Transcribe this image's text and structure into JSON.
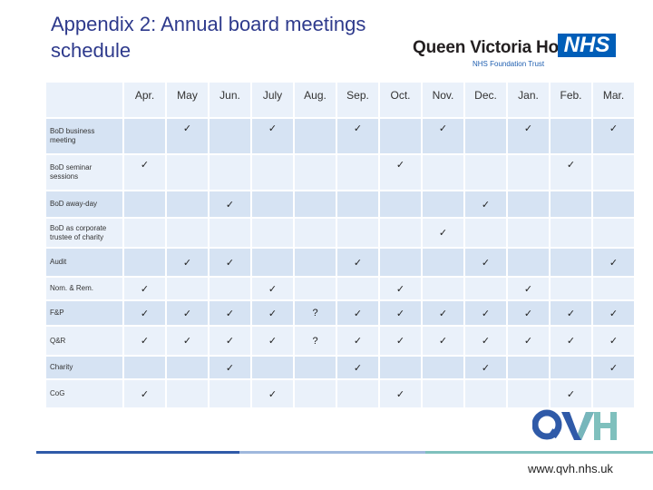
{
  "title": "Appendix 2: Annual board meetings schedule",
  "logo": {
    "hospital_name": "Queen Victoria Hospital",
    "nhs_mark": "NHS",
    "trust_line": "NHS Foundation Trust",
    "qvh_letters": "QVH"
  },
  "table": {
    "months": [
      "Apr.",
      "May",
      "Jun.",
      "July",
      "Aug.",
      "Sep.",
      "Oct.",
      "Nov.",
      "Dec.",
      "Jan.",
      "Feb.",
      "Mar."
    ],
    "rows": [
      {
        "label_lines": [
          "BoD business",
          "meeting"
        ],
        "cells": [
          "",
          "✓",
          "",
          "✓",
          "",
          "✓",
          "",
          "✓",
          "",
          "✓",
          "",
          "✓"
        ]
      },
      {
        "label_lines": [
          "BoD seminar",
          "sessions"
        ],
        "cells": [
          "✓",
          "",
          "",
          "",
          "",
          "",
          "✓",
          "",
          "",
          "",
          "✓",
          ""
        ]
      },
      {
        "label_lines": [
          "BoD away-day"
        ],
        "cells": [
          "",
          "",
          "✓",
          "",
          "",
          "",
          "",
          "",
          "✓",
          "",
          "",
          ""
        ]
      },
      {
        "label_lines": [
          "BoD as corporate",
          "trustee of charity"
        ],
        "cells": [
          "",
          "",
          "",
          "",
          "",
          "",
          "",
          "✓",
          "",
          "",
          "",
          ""
        ]
      },
      {
        "label_lines": [
          "Audit"
        ],
        "cells": [
          "",
          "✓",
          "✓",
          "",
          "",
          "✓",
          "",
          "",
          "✓",
          "",
          "",
          "✓"
        ]
      },
      {
        "label_lines": [
          "Nom. & Rem."
        ],
        "cells": [
          "✓",
          "",
          "",
          "✓",
          "",
          "",
          "✓",
          "",
          "",
          "✓",
          "",
          ""
        ]
      },
      {
        "label_lines": [
          "F&P"
        ],
        "cells": [
          "✓",
          "✓",
          "✓",
          "✓",
          "?",
          "✓",
          "✓",
          "✓",
          "✓",
          "✓",
          "✓",
          "✓"
        ]
      },
      {
        "label_lines": [
          "Q&R"
        ],
        "cells": [
          "✓",
          "✓",
          "✓",
          "✓",
          "?",
          "✓",
          "✓",
          "✓",
          "✓",
          "✓",
          "✓",
          "✓"
        ]
      },
      {
        "label_lines": [
          "Charity"
        ],
        "cells": [
          "",
          "",
          "✓",
          "",
          "",
          "✓",
          "",
          "",
          "✓",
          "",
          "",
          "✓"
        ]
      },
      {
        "label_lines": [
          "CoG"
        ],
        "cells": [
          "✓",
          "",
          "",
          "✓",
          "",
          "",
          "✓",
          "",
          "",
          "",
          "✓",
          ""
        ]
      }
    ]
  },
  "footer": {
    "url": "www.qvh.nhs.uk"
  },
  "colors": {
    "title": "#2e3a8c",
    "row_dark": "#d6e3f3",
    "row_light": "#eaf1fa",
    "nhs_blue": "#005eb8",
    "qvh_blue": "#2f5aa8",
    "qvh_teal": "#7fc0bd"
  }
}
